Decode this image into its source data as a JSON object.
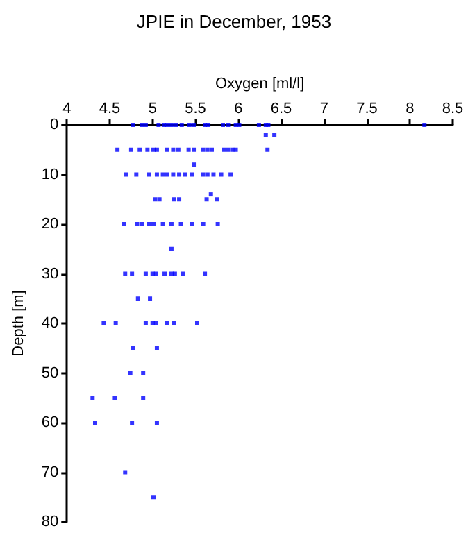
{
  "chart_data": {
    "type": "scatter",
    "title": "JPIE in December, 1953",
    "xlabel": "Oxygen [ml/l]",
    "ylabel": "Depth [m]",
    "xlim": [
      4,
      8.5
    ],
    "xticks": [
      4,
      4.5,
      5,
      5.5,
      6,
      6.5,
      7,
      7.5,
      8,
      8.5
    ],
    "ylim": [
      80,
      0
    ],
    "yticks": [
      0,
      10,
      20,
      30,
      40,
      50,
      60,
      70,
      80
    ],
    "marker": "square",
    "series": [
      {
        "color": "#0000ff",
        "x": [
          4.77,
          4.88,
          4.92,
          5.07,
          5.13,
          5.17,
          5.22,
          5.27,
          5.34,
          5.43,
          5.48,
          5.61,
          5.65,
          5.82,
          5.88,
          5.97,
          6.01,
          6.24,
          6.32,
          6.35,
          8.17,
          6.32,
          6.42,
          4.59,
          4.75,
          4.85,
          4.94,
          5.01,
          5.05,
          5.17,
          5.24,
          5.3,
          5.42,
          5.48,
          5.59,
          5.64,
          5.69,
          5.83,
          5.88,
          5.93,
          5.97,
          6.34,
          5.48,
          4.69,
          4.81,
          4.96,
          5.05,
          5.12,
          5.17,
          5.24,
          5.31,
          5.38,
          5.46,
          5.59,
          5.64,
          5.71,
          5.8,
          5.91,
          5.68,
          5.03,
          5.08,
          5.25,
          5.31,
          5.63,
          5.75,
          4.67,
          4.82,
          4.88,
          4.96,
          5.01,
          5.12,
          5.22,
          5.33,
          5.46,
          5.59,
          5.76,
          5.22,
          4.68,
          4.76,
          4.92,
          5.0,
          5.04,
          5.14,
          5.22,
          5.26,
          5.35,
          5.61,
          4.83,
          4.97,
          4.43,
          4.57,
          4.92,
          5.0,
          5.04,
          5.17,
          5.25,
          5.52,
          4.77,
          5.05,
          4.74,
          4.89,
          4.3,
          4.56,
          4.89,
          4.33,
          4.76,
          5.05,
          4.68,
          5.01
        ],
        "values": [
          0,
          0,
          0,
          0,
          0,
          0,
          0,
          0,
          0,
          0,
          0,
          0,
          0,
          0,
          0,
          0,
          0,
          0,
          0,
          0,
          0,
          2,
          2,
          5,
          5,
          5,
          5,
          5,
          5,
          5,
          5,
          5,
          5,
          5,
          5,
          5,
          5,
          5,
          5,
          5,
          5,
          5,
          8,
          10,
          10,
          10,
          10,
          10,
          10,
          10,
          10,
          10,
          10,
          10,
          10,
          10,
          10,
          10,
          14,
          15,
          15,
          15,
          15,
          15,
          15,
          20,
          20,
          20,
          20,
          20,
          20,
          20,
          20,
          20,
          20,
          20,
          25,
          30,
          30,
          30,
          30,
          30,
          30,
          30,
          30,
          30,
          30,
          35,
          35,
          40,
          40,
          40,
          40,
          40,
          40,
          40,
          40,
          45,
          45,
          50,
          50,
          55,
          55,
          55,
          60,
          60,
          60,
          70,
          75
        ]
      }
    ]
  }
}
